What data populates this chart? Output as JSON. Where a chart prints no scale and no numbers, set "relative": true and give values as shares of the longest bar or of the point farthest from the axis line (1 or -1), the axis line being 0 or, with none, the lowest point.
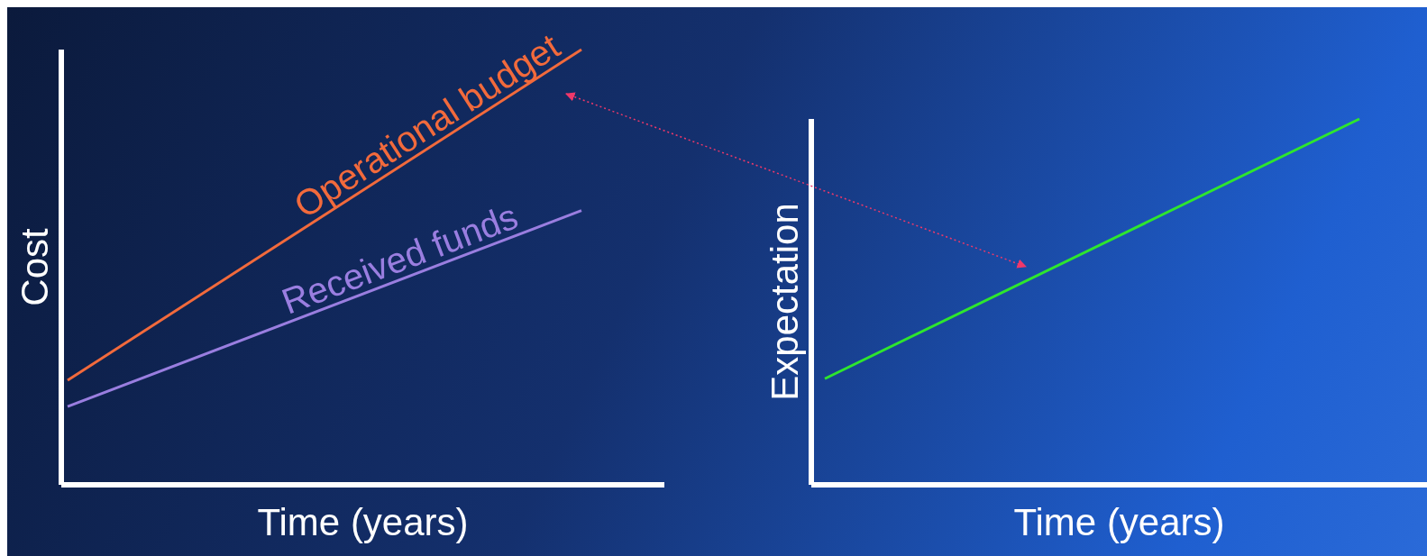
{
  "chart_data": [
    {
      "type": "line",
      "relative": true,
      "categories": [
        null,
        null
      ],
      "xlabel": "Time (years)",
      "ylabel": "Cost",
      "legend": false,
      "grid": false,
      "line_style": "solid",
      "ref_lines": [
        {
          "axis": "y",
          "value": 0,
          "color": "#ffffff"
        }
      ],
      "series": [
        {
          "name": "Operational budget",
          "color": "#f26a3c",
          "values": [
            0.24,
            1
          ]
        },
        {
          "name": "Received funds",
          "color": "#9a7ee0",
          "values": [
            0.18,
            0.63
          ]
        }
      ]
    },
    {
      "type": "line",
      "relative": true,
      "categories": [
        null,
        null
      ],
      "xlabel": "Time (years)",
      "ylabel": "Expectation",
      "legend": false,
      "grid": false,
      "line_style": "solid",
      "ref_lines": [
        {
          "axis": "y",
          "value": 0,
          "color": "#ffffff"
        }
      ],
      "series": [
        {
          "color": "#2ee62e",
          "values": [
            0.29,
            1
          ]
        }
      ]
    }
  ]
}
